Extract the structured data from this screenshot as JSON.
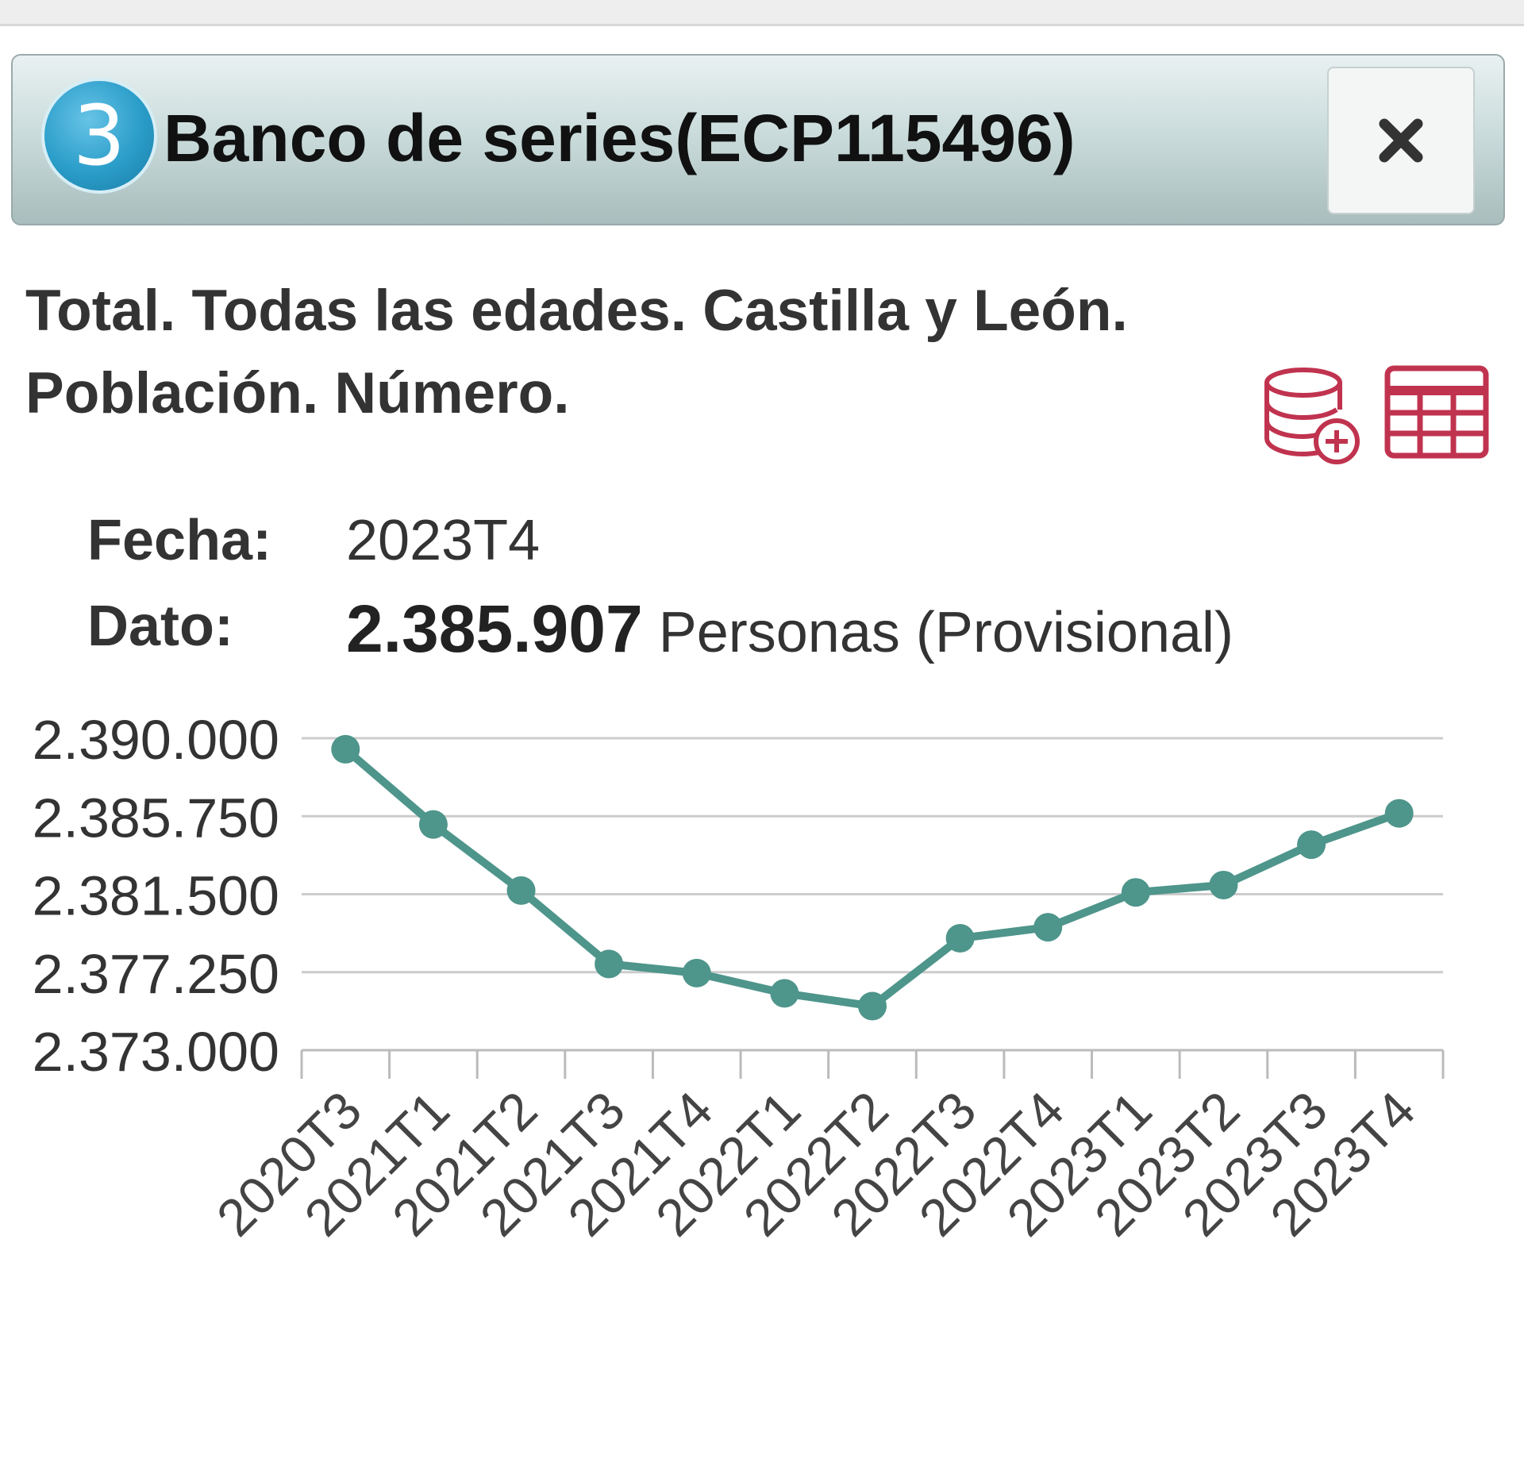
{
  "window": {
    "badge_number": "3",
    "title": "Banco de series(ECP115496)",
    "close_label": "×"
  },
  "subtitle": "Total. Todas las edades. Castilla y León. Población. Número.",
  "toolbar": {
    "db_icon": "database-add-icon",
    "table_icon": "table-icon",
    "icon_color": "#c0334f"
  },
  "info": {
    "fecha_label": "Fecha:",
    "fecha_value": "2023T4",
    "dato_label": "Dato:",
    "dato_value": "2.385.907",
    "dato_unit": "Personas",
    "dato_status": "(Provisional)"
  },
  "chart_data": {
    "type": "line",
    "categories": [
      "2020T3",
      "2021T1",
      "2021T2",
      "2021T3",
      "2021T4",
      "2022T1",
      "2022T2",
      "2022T3",
      "2022T4",
      "2023T1",
      "2023T2",
      "2023T3",
      "2023T4"
    ],
    "values": [
      2389400,
      2385300,
      2381700,
      2377700,
      2377200,
      2376100,
      2375400,
      2379100,
      2379700,
      2381600,
      2382000,
      2384200,
      2385907
    ],
    "ylim": [
      2373000,
      2390000
    ],
    "yticks": [
      2390000,
      2385750,
      2381500,
      2377250,
      2373000
    ],
    "ytick_labels": [
      "2.390.000",
      "2.385.750",
      "2.381.500",
      "2.377.250",
      "2.373.000"
    ],
    "grid": true,
    "line_color": "#4e958b",
    "title": "",
    "xlabel": "",
    "ylabel": ""
  }
}
